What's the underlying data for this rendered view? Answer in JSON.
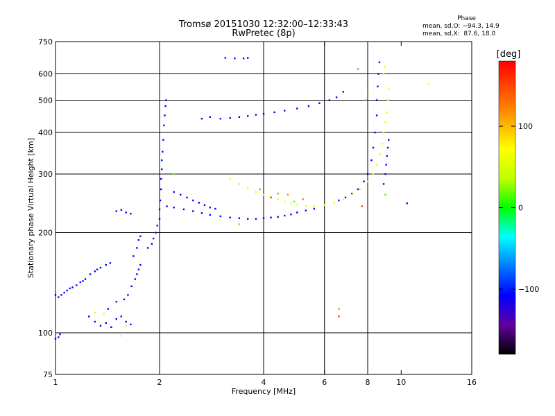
{
  "header": {
    "title": "Tromsø 20151030 12:32:00–12:33:43",
    "subtitle": "RwPretec (8p)"
  },
  "phase_stats": {
    "heading": "Phase",
    "o_line": "mean, sd,O: −94.3, 14.9",
    "x_line": "mean, sd,X:  87.6, 18.0"
  },
  "chart_data": {
    "type": "scatter",
    "xlabel": "Frequency [MHz]",
    "ylabel": "Stationary phase Virtual Height [km]",
    "xscale": "log",
    "yscale": "log",
    "xlim": [
      1,
      16
    ],
    "ylim": [
      75,
      750
    ],
    "xticks": [
      {
        "v": 1,
        "label": "1",
        "grid": false
      },
      {
        "v": 2,
        "label": "2",
        "grid": true
      },
      {
        "v": 4,
        "label": "4",
        "grid": true
      },
      {
        "v": 6,
        "label": "6",
        "grid": true
      },
      {
        "v": 8,
        "label": "8",
        "grid": true
      },
      {
        "v": 10,
        "label": "10",
        "grid": false
      },
      {
        "v": 16,
        "label": "16",
        "grid": false
      }
    ],
    "yticks": [
      {
        "v": 75,
        "label": "75",
        "grid": false
      },
      {
        "v": 100,
        "label": "100",
        "grid": true
      },
      {
        "v": 200,
        "label": "200",
        "grid": true
      },
      {
        "v": 300,
        "label": "300",
        "grid": true
      },
      {
        "v": 400,
        "label": "400",
        "grid": true
      },
      {
        "v": 500,
        "label": "500",
        "grid": true
      },
      {
        "v": 600,
        "label": "600",
        "grid": true
      },
      {
        "v": 750,
        "label": "750",
        "grid": false
      }
    ],
    "grid": true,
    "colorbar": {
      "unit": "[deg]",
      "min": -180,
      "max": 180,
      "ticks": [
        {
          "v": 100,
          "label": "100"
        },
        {
          "v": 0,
          "label": "0"
        },
        {
          "v": -100,
          "label": "−100"
        }
      ]
    },
    "series": [
      {
        "phase": -100,
        "points": [
          [
            1.0,
            130
          ],
          [
            1.02,
            128
          ],
          [
            1.04,
            130
          ],
          [
            1.06,
            132
          ],
          [
            1.08,
            134
          ],
          [
            1.1,
            136
          ],
          [
            1.12,
            137
          ],
          [
            1.15,
            139
          ],
          [
            1.18,
            142
          ],
          [
            1.2,
            143
          ],
          [
            1.22,
            145
          ],
          [
            1.26,
            150
          ],
          [
            1.3,
            153
          ],
          [
            1.32,
            155
          ],
          [
            1.35,
            157
          ],
          [
            1.4,
            160
          ],
          [
            1.44,
            162
          ],
          [
            1.0,
            96
          ],
          [
            1.02,
            97
          ],
          [
            1.03,
            99
          ],
          [
            1.25,
            112
          ],
          [
            1.3,
            108
          ],
          [
            1.35,
            105
          ],
          [
            1.4,
            107
          ],
          [
            1.45,
            104
          ],
          [
            1.5,
            110
          ],
          [
            1.55,
            112
          ],
          [
            1.6,
            108
          ],
          [
            1.65,
            106
          ],
          [
            1.42,
            118
          ],
          [
            1.5,
            124
          ],
          [
            1.58,
            126
          ],
          [
            1.62,
            130
          ],
          [
            1.66,
            138
          ],
          [
            1.7,
            145
          ],
          [
            1.72,
            150
          ],
          [
            1.74,
            155
          ],
          [
            1.76,
            160
          ],
          [
            1.68,
            170
          ],
          [
            1.72,
            180
          ],
          [
            1.74,
            190
          ],
          [
            1.76,
            195
          ],
          [
            1.5,
            232
          ],
          [
            1.55,
            234
          ],
          [
            1.6,
            230
          ],
          [
            1.65,
            228
          ],
          [
            1.85,
            180
          ],
          [
            1.9,
            185
          ],
          [
            1.92,
            192
          ],
          [
            1.95,
            200
          ],
          [
            1.97,
            210
          ],
          [
            2.0,
            220
          ],
          [
            2.0,
            235
          ],
          [
            2.01,
            250
          ],
          [
            2.02,
            270
          ],
          [
            2.02,
            290
          ],
          [
            2.03,
            310
          ],
          [
            2.03,
            330
          ],
          [
            2.04,
            350
          ],
          [
            2.05,
            380
          ],
          [
            2.06,
            420
          ],
          [
            2.07,
            450
          ],
          [
            2.08,
            480
          ],
          [
            2.09,
            500
          ],
          [
            2.1,
            240
          ],
          [
            2.2,
            238
          ],
          [
            2.35,
            235
          ],
          [
            2.5,
            232
          ],
          [
            2.65,
            229
          ],
          [
            2.8,
            226
          ],
          [
            3.0,
            224
          ],
          [
            3.2,
            222
          ],
          [
            3.4,
            221
          ],
          [
            3.6,
            220
          ],
          [
            3.8,
            220
          ],
          [
            4.0,
            221
          ],
          [
            4.2,
            222
          ],
          [
            4.4,
            223
          ],
          [
            4.6,
            225
          ],
          [
            4.8,
            227
          ],
          [
            5.0,
            230
          ],
          [
            5.3,
            233
          ],
          [
            5.6,
            236
          ],
          [
            2.2,
            265
          ],
          [
            2.3,
            260
          ],
          [
            2.4,
            255
          ],
          [
            2.5,
            250
          ],
          [
            2.6,
            246
          ],
          [
            2.7,
            242
          ],
          [
            2.8,
            238
          ],
          [
            2.9,
            236
          ],
          [
            2.65,
            440
          ],
          [
            2.8,
            445
          ],
          [
            3.0,
            440
          ],
          [
            3.2,
            442
          ],
          [
            3.4,
            445
          ],
          [
            3.6,
            448
          ],
          [
            3.8,
            452
          ],
          [
            4.0,
            455
          ],
          [
            4.3,
            460
          ],
          [
            4.6,
            465
          ],
          [
            5.0,
            472
          ],
          [
            5.4,
            480
          ],
          [
            5.8,
            490
          ],
          [
            6.2,
            500
          ],
          [
            6.5,
            510
          ],
          [
            6.8,
            530
          ],
          [
            3.1,
            670
          ],
          [
            3.3,
            668
          ],
          [
            3.5,
            668
          ],
          [
            3.6,
            670
          ],
          [
            6.6,
            250
          ],
          [
            6.9,
            255
          ],
          [
            7.2,
            262
          ],
          [
            7.5,
            270
          ],
          [
            7.8,
            285
          ],
          [
            8.0,
            300
          ],
          [
            8.2,
            330
          ],
          [
            8.3,
            360
          ],
          [
            8.4,
            400
          ],
          [
            8.5,
            450
          ],
          [
            8.5,
            500
          ],
          [
            8.55,
            550
          ],
          [
            8.6,
            600
          ],
          [
            8.65,
            650
          ],
          [
            8.9,
            280
          ],
          [
            9.0,
            300
          ],
          [
            9.05,
            320
          ],
          [
            9.1,
            340
          ],
          [
            9.15,
            360
          ],
          [
            9.2,
            380
          ],
          [
            10.4,
            245
          ]
        ]
      },
      {
        "phase": 90,
        "points": [
          [
            3.2,
            290
          ],
          [
            3.4,
            280
          ],
          [
            3.6,
            272
          ],
          [
            3.8,
            265
          ],
          [
            4.0,
            260
          ],
          [
            4.2,
            256
          ],
          [
            4.4,
            252
          ],
          [
            4.6,
            248
          ],
          [
            4.8,
            245
          ],
          [
            5.0,
            243
          ],
          [
            5.3,
            240
          ],
          [
            5.6,
            240
          ],
          [
            6.0,
            242
          ],
          [
            6.4,
            246
          ],
          [
            6.8,
            252
          ],
          [
            7.2,
            260
          ],
          [
            7.6,
            270
          ],
          [
            8.0,
            285
          ],
          [
            8.3,
            300
          ],
          [
            8.5,
            320
          ],
          [
            8.7,
            345
          ],
          [
            8.8,
            370
          ],
          [
            8.9,
            400
          ],
          [
            9.0,
            430
          ],
          [
            9.1,
            460
          ],
          [
            9.15,
            500
          ],
          [
            9.2,
            540
          ],
          [
            8.9,
            600
          ],
          [
            8.95,
            630
          ],
          [
            12.0,
            560
          ],
          [
            1.3,
            115
          ],
          [
            1.38,
            114
          ],
          [
            1.55,
            98
          ],
          [
            1.6,
            105
          ]
        ]
      },
      {
        "phase": 130,
        "points": [
          [
            3.9,
            270
          ],
          [
            4.4,
            262
          ],
          [
            4.7,
            260
          ],
          [
            5.2,
            252
          ],
          [
            7.5,
            620
          ],
          [
            7.9,
            500
          ],
          [
            8.0,
            525
          ],
          [
            6.6,
            118
          ]
        ]
      },
      {
        "phase": 160,
        "points": [
          [
            6.6,
            112
          ],
          [
            7.7,
            240
          ],
          [
            4.2,
            255
          ]
        ]
      },
      {
        "phase": 30,
        "points": [
          [
            3.4,
            212
          ],
          [
            4.9,
            248
          ],
          [
            2.2,
            300
          ],
          [
            9.0,
            260
          ]
        ]
      }
    ]
  }
}
